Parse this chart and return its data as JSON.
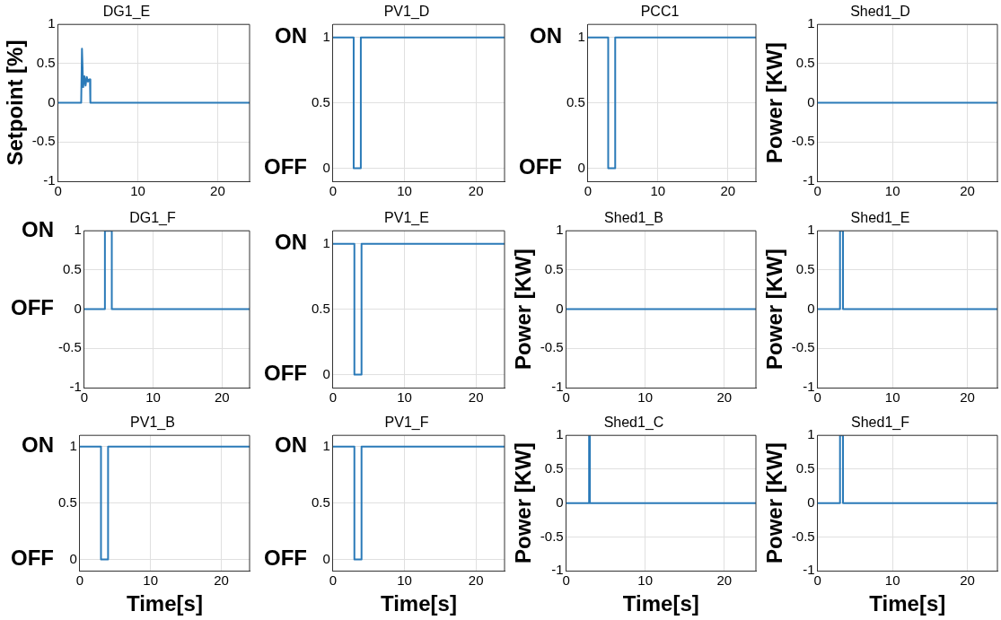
{
  "chart_data": [
    {
      "type": "line",
      "title": "DG1_E",
      "ylabel": "Setpoint [%]",
      "xlim": [
        0,
        24
      ],
      "xticks": [
        0,
        10,
        20
      ],
      "ylim": [
        -1,
        1
      ],
      "yticks": [
        -1,
        -0.5,
        0,
        0.5,
        1
      ],
      "grid": true,
      "series": [
        {
          "color": "#2a7ab8",
          "x": [
            0,
            2.9,
            3.0,
            3.15,
            3.3,
            3.45,
            3.6,
            3.75,
            3.9,
            4.0,
            4.05,
            24
          ],
          "values": [
            0,
            0,
            0.69,
            0.2,
            0.34,
            0.22,
            0.33,
            0.27,
            0.3,
            0.3,
            0,
            0
          ]
        }
      ]
    },
    {
      "type": "line",
      "title": "PV1_D",
      "xlim": [
        0,
        24
      ],
      "xticks": [
        0,
        10,
        20
      ],
      "ylim": [
        -0.1,
        1.1
      ],
      "yticks": [
        0,
        0.5,
        1
      ],
      "grid": true,
      "annotations": [
        "ON",
        "OFF"
      ],
      "series": [
        {
          "color": "#2a7ab8",
          "x": [
            0,
            2.9,
            2.9,
            3.9,
            3.9,
            24
          ],
          "values": [
            1,
            1,
            0,
            0,
            1,
            1
          ]
        }
      ]
    },
    {
      "type": "line",
      "title": "PCC1",
      "xlim": [
        0,
        24
      ],
      "xticks": [
        0,
        10,
        20
      ],
      "ylim": [
        -0.1,
        1.1
      ],
      "yticks": [
        0,
        0.5,
        1
      ],
      "grid": true,
      "annotations": [
        "ON",
        "OFF"
      ],
      "series": [
        {
          "color": "#2a7ab8",
          "x": [
            0,
            2.9,
            2.9,
            3.9,
            3.9,
            24
          ],
          "values": [
            1,
            1,
            0,
            0,
            1,
            1
          ]
        }
      ]
    },
    {
      "type": "line",
      "title": "Shed1_D",
      "ylabel": "Power [KW]",
      "xlim": [
        0,
        24
      ],
      "xticks": [
        0,
        10,
        20
      ],
      "ylim": [
        -1,
        1
      ],
      "yticks": [
        -1,
        -0.5,
        0,
        0.5,
        1
      ],
      "grid": true,
      "series": [
        {
          "color": "#2a7ab8",
          "x": [
            0,
            24
          ],
          "values": [
            0,
            0
          ]
        }
      ]
    },
    {
      "type": "line",
      "title": "DG1_F",
      "xlim": [
        0,
        24
      ],
      "xticks": [
        0,
        10,
        20
      ],
      "ylim": [
        -1,
        1
      ],
      "yticks": [
        -1,
        -0.5,
        0,
        0.5,
        1
      ],
      "grid": true,
      "annotations": [
        "ON",
        "OFF"
      ],
      "series": [
        {
          "color": "#2a7ab8",
          "x": [
            0,
            3.0,
            3.0,
            4.0,
            4.0,
            24
          ],
          "values": [
            0,
            0,
            1,
            1,
            0,
            0
          ]
        }
      ]
    },
    {
      "type": "line",
      "title": "PV1_E",
      "xlim": [
        0,
        24
      ],
      "xticks": [
        0,
        10,
        20
      ],
      "ylim": [
        -0.1,
        1.1
      ],
      "yticks": [
        0,
        0.5,
        1
      ],
      "grid": true,
      "annotations": [
        "ON",
        "OFF"
      ],
      "series": [
        {
          "color": "#2a7ab8",
          "x": [
            0,
            3.0,
            3.0,
            4.0,
            4.0,
            24
          ],
          "values": [
            1,
            1,
            0,
            0,
            1,
            1
          ]
        }
      ]
    },
    {
      "type": "line",
      "title": "Shed1_B",
      "ylabel": "Power [KW]",
      "xlim": [
        0,
        24
      ],
      "xticks": [
        0,
        10,
        20
      ],
      "ylim": [
        -1,
        1
      ],
      "yticks": [
        -1,
        -0.5,
        0,
        0.5,
        1
      ],
      "grid": true,
      "series": [
        {
          "color": "#2a7ab8",
          "x": [
            0,
            24
          ],
          "values": [
            0,
            0
          ]
        }
      ]
    },
    {
      "type": "line",
      "title": "Shed1_E",
      "ylabel": "Power [KW]",
      "xlim": [
        0,
        24
      ],
      "xticks": [
        0,
        10,
        20
      ],
      "ylim": [
        -1,
        1
      ],
      "yticks": [
        -1,
        -0.5,
        0,
        0.5,
        1
      ],
      "grid": true,
      "series": [
        {
          "color": "#2a7ab8",
          "x": [
            0,
            3.0,
            3.0,
            3.4,
            3.4,
            24
          ],
          "values": [
            0,
            0,
            1,
            1,
            0,
            0
          ]
        }
      ]
    },
    {
      "type": "line",
      "title": "PV1_B",
      "xlabel": "Time[s]",
      "xlim": [
        0,
        24
      ],
      "xticks": [
        0,
        10,
        20
      ],
      "ylim": [
        -0.1,
        1.1
      ],
      "yticks": [
        0,
        0.5,
        1
      ],
      "grid": true,
      "annotations": [
        "ON",
        "OFF"
      ],
      "series": [
        {
          "color": "#2a7ab8",
          "x": [
            0,
            3.0,
            3.0,
            4.0,
            4.0,
            24
          ],
          "values": [
            1,
            1,
            0,
            0,
            1,
            1
          ]
        }
      ]
    },
    {
      "type": "line",
      "title": "PV1_F",
      "xlabel": "Time[s]",
      "xlim": [
        0,
        24
      ],
      "xticks": [
        0,
        10,
        20
      ],
      "ylim": [
        -0.1,
        1.1
      ],
      "yticks": [
        0,
        0.5,
        1
      ],
      "grid": true,
      "annotations": [
        "ON",
        "OFF"
      ],
      "series": [
        {
          "color": "#2a7ab8",
          "x": [
            0,
            3.0,
            3.0,
            4.0,
            4.0,
            24
          ],
          "values": [
            1,
            1,
            0,
            0,
            1,
            1
          ]
        }
      ]
    },
    {
      "type": "line",
      "title": "Shed1_C",
      "ylabel": "Power [KW]",
      "xlabel": "Time[s]",
      "xlim": [
        0,
        24
      ],
      "xticks": [
        0,
        10,
        20
      ],
      "ylim": [
        -1,
        1
      ],
      "yticks": [
        -1,
        -0.5,
        0,
        0.5,
        1
      ],
      "grid": true,
      "series": [
        {
          "color": "#2a7ab8",
          "x": [
            0,
            2.9,
            2.9,
            3.0,
            3.0,
            24
          ],
          "values": [
            0,
            0,
            1,
            1,
            0,
            0
          ]
        }
      ]
    },
    {
      "type": "line",
      "title": "Shed1_F",
      "ylabel": "Power [KW]",
      "xlabel": "Time[s]",
      "xlim": [
        0,
        24
      ],
      "xticks": [
        0,
        10,
        20
      ],
      "ylim": [
        -1,
        1
      ],
      "yticks": [
        -1,
        -0.5,
        0,
        0.5,
        1
      ],
      "grid": true,
      "series": [
        {
          "color": "#2a7ab8",
          "x": [
            0,
            3.0,
            3.0,
            3.4,
            3.4,
            24
          ],
          "values": [
            0,
            0,
            1,
            1,
            0,
            0
          ]
        }
      ]
    }
  ]
}
